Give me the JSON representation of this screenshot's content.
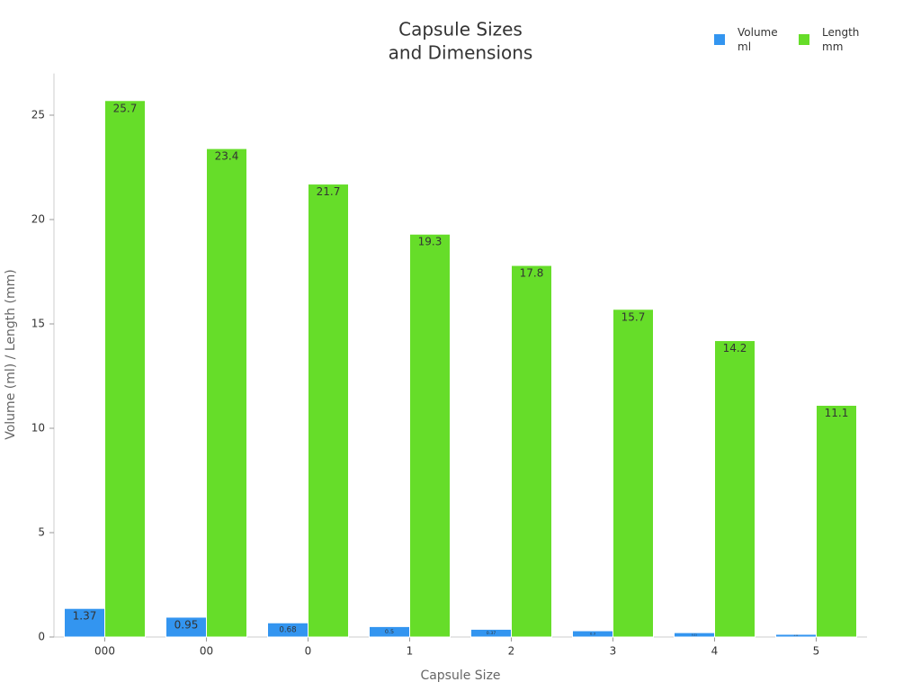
{
  "chart_data": {
    "type": "bar",
    "title": [
      "Capsule Sizes",
      "and Dimensions"
    ],
    "x_label": "Capsule Size",
    "y_label": "Volume (ml) / Length (mm)",
    "categories": [
      "000",
      "00",
      "0",
      "1",
      "2",
      "3",
      "4",
      "5"
    ],
    "series": [
      {
        "name": "Volume ml",
        "color": "#3395f0",
        "values": [
          1.37,
          0.95,
          0.68,
          0.5,
          0.37,
          0.3,
          0.21,
          0.13
        ]
      },
      {
        "name": "Length mm",
        "color": "#66dd29",
        "values": [
          25.7,
          23.4,
          21.7,
          19.3,
          17.8,
          15.7,
          14.2,
          11.1
        ]
      }
    ],
    "ylim": [
      0,
      27
    ],
    "yticks": [
      0,
      5,
      10,
      15,
      20,
      25
    ],
    "legend": "top-right"
  }
}
